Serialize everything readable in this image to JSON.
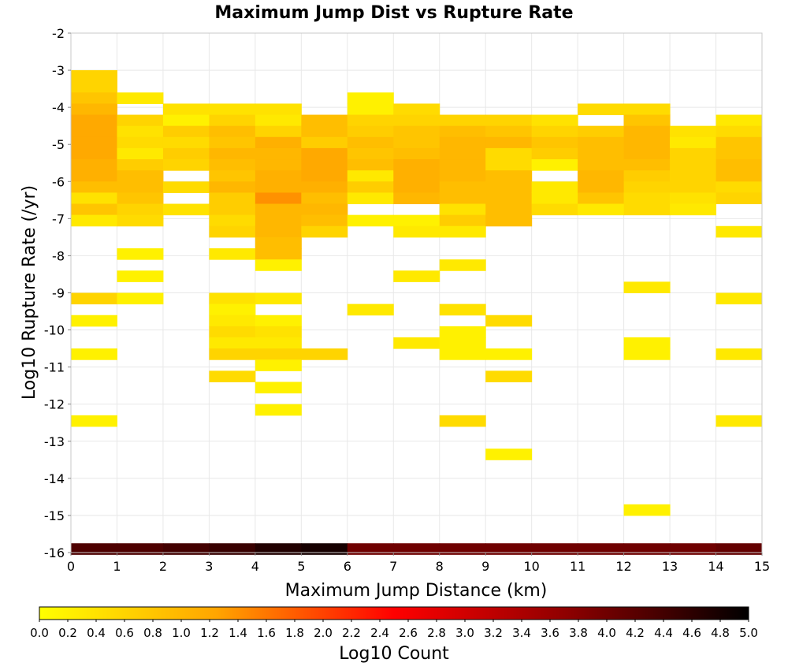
{
  "chart_data": {
    "type": "heatmap",
    "title": "Maximum Jump Dist vs Rupture Rate",
    "xlabel": "Maximum Jump Distance (km)",
    "ylabel": "Log10 Rupture Rate (/yr)",
    "xlim": [
      0,
      15
    ],
    "ylim": [
      -16,
      -2
    ],
    "x_ticks": [
      "0",
      "1",
      "2",
      "3",
      "4",
      "5",
      "6",
      "7",
      "8",
      "9",
      "10",
      "11",
      "12",
      "13",
      "14",
      "15"
    ],
    "y_ticks": [
      "-16",
      "-15",
      "-14",
      "-13",
      "-12",
      "-11",
      "-10",
      "-9",
      "-8",
      "-7",
      "-6",
      "-5",
      "-4",
      "-3",
      "-2"
    ],
    "grid": true,
    "x_bin_width": 1,
    "y_bin_height": 0.3,
    "colorbar": {
      "label": "Log10 Count",
      "range": [
        0,
        5
      ],
      "colors": [
        "#ffff00",
        "#ffa500",
        "#ff0000",
        "#8b0000",
        "#000000"
      ],
      "ticks": [
        "0.0",
        "0.2",
        "0.4",
        "0.6",
        "0.8",
        "1.0",
        "1.2",
        "1.4",
        "1.6",
        "1.8",
        "2.0",
        "2.2",
        "2.4",
        "2.6",
        "2.8",
        "3.0",
        "3.2",
        "3.4",
        "3.6",
        "3.8",
        "4.0",
        "4.2",
        "4.4",
        "4.6",
        "4.8",
        "5.0"
      ]
    },
    "cells": [
      {
        "x": 0,
        "y": -3.15,
        "v": 0.6
      },
      {
        "x": 0,
        "y": -3.45,
        "v": 0.6
      },
      {
        "x": 0,
        "y": -3.75,
        "v": 0.8
      },
      {
        "x": 0,
        "y": -4.05,
        "v": 1.0
      },
      {
        "x": 0,
        "y": -4.35,
        "v": 1.2
      },
      {
        "x": 0,
        "y": -4.65,
        "v": 1.2
      },
      {
        "x": 0,
        "y": -4.95,
        "v": 1.2
      },
      {
        "x": 0,
        "y": -5.25,
        "v": 1.2
      },
      {
        "x": 0,
        "y": -5.55,
        "v": 1.1
      },
      {
        "x": 0,
        "y": -5.85,
        "v": 1.1
      },
      {
        "x": 0,
        "y": -6.15,
        "v": 0.9
      },
      {
        "x": 0,
        "y": -6.45,
        "v": 0.4
      },
      {
        "x": 0,
        "y": -6.75,
        "v": 0.8
      },
      {
        "x": 0,
        "y": -7.05,
        "v": 0.3
      },
      {
        "x": 0,
        "y": -9.15,
        "v": 0.6
      },
      {
        "x": 0,
        "y": -9.75,
        "v": 0.2
      },
      {
        "x": 0,
        "y": -10.65,
        "v": 0.2
      },
      {
        "x": 0,
        "y": -12.45,
        "v": 0.2
      },
      {
        "x": 1,
        "y": -3.75,
        "v": 0.3
      },
      {
        "x": 1,
        "y": -4.35,
        "v": 0.6
      },
      {
        "x": 1,
        "y": -4.65,
        "v": 0.4
      },
      {
        "x": 1,
        "y": -4.95,
        "v": 0.5
      },
      {
        "x": 1,
        "y": -5.25,
        "v": 0.3
      },
      {
        "x": 1,
        "y": -5.55,
        "v": 0.7
      },
      {
        "x": 1,
        "y": -5.85,
        "v": 0.9
      },
      {
        "x": 1,
        "y": -6.15,
        "v": 0.9
      },
      {
        "x": 1,
        "y": -6.45,
        "v": 0.8
      },
      {
        "x": 1,
        "y": -6.75,
        "v": 0.6
      },
      {
        "x": 1,
        "y": -7.05,
        "v": 0.5
      },
      {
        "x": 1,
        "y": -7.95,
        "v": 0.2
      },
      {
        "x": 1,
        "y": -8.55,
        "v": 0.2
      },
      {
        "x": 1,
        "y": -9.15,
        "v": 0.2
      },
      {
        "x": 2,
        "y": -4.05,
        "v": 0.4
      },
      {
        "x": 2,
        "y": -4.35,
        "v": 0.2
      },
      {
        "x": 2,
        "y": -4.65,
        "v": 0.7
      },
      {
        "x": 2,
        "y": -4.95,
        "v": 0.5
      },
      {
        "x": 2,
        "y": -5.25,
        "v": 0.7
      },
      {
        "x": 2,
        "y": -5.55,
        "v": 0.6
      },
      {
        "x": 2,
        "y": -6.15,
        "v": 0.5
      },
      {
        "x": 2,
        "y": -6.75,
        "v": 0.4
      },
      {
        "x": 3,
        "y": -4.05,
        "v": 0.4
      },
      {
        "x": 3,
        "y": -4.35,
        "v": 0.6
      },
      {
        "x": 3,
        "y": -4.65,
        "v": 0.9
      },
      {
        "x": 3,
        "y": -4.95,
        "v": 0.8
      },
      {
        "x": 3,
        "y": -5.25,
        "v": 1.0
      },
      {
        "x": 3,
        "y": -5.55,
        "v": 0.9
      },
      {
        "x": 3,
        "y": -5.85,
        "v": 0.8
      },
      {
        "x": 3,
        "y": -6.15,
        "v": 1.0
      },
      {
        "x": 3,
        "y": -6.45,
        "v": 0.7
      },
      {
        "x": 3,
        "y": -6.75,
        "v": 0.7
      },
      {
        "x": 3,
        "y": -7.05,
        "v": 0.5
      },
      {
        "x": 3,
        "y": -7.35,
        "v": 0.6
      },
      {
        "x": 3,
        "y": -7.95,
        "v": 0.3
      },
      {
        "x": 3,
        "y": -9.15,
        "v": 0.4
      },
      {
        "x": 3,
        "y": -9.45,
        "v": 0.2
      },
      {
        "x": 3,
        "y": -9.75,
        "v": 0.3
      },
      {
        "x": 3,
        "y": -10.05,
        "v": 0.5
      },
      {
        "x": 3,
        "y": -10.35,
        "v": 0.3
      },
      {
        "x": 3,
        "y": -10.65,
        "v": 0.6
      },
      {
        "x": 3,
        "y": -11.25,
        "v": 0.5
      },
      {
        "x": 4,
        "y": -4.05,
        "v": 0.4
      },
      {
        "x": 4,
        "y": -4.35,
        "v": 0.3
      },
      {
        "x": 4,
        "y": -4.65,
        "v": 0.6
      },
      {
        "x": 4,
        "y": -4.95,
        "v": 1.1
      },
      {
        "x": 4,
        "y": -5.25,
        "v": 1.0
      },
      {
        "x": 4,
        "y": -5.55,
        "v": 1.0
      },
      {
        "x": 4,
        "y": -5.85,
        "v": 1.1
      },
      {
        "x": 4,
        "y": -6.15,
        "v": 1.1
      },
      {
        "x": 4,
        "y": -6.45,
        "v": 1.4
      },
      {
        "x": 4,
        "y": -6.75,
        "v": 1.0
      },
      {
        "x": 4,
        "y": -7.05,
        "v": 1.0
      },
      {
        "x": 4,
        "y": -7.35,
        "v": 1.0
      },
      {
        "x": 4,
        "y": -7.65,
        "v": 0.9
      },
      {
        "x": 4,
        "y": -7.95,
        "v": 0.9
      },
      {
        "x": 4,
        "y": -8.25,
        "v": 0.2
      },
      {
        "x": 4,
        "y": -9.15,
        "v": 0.3
      },
      {
        "x": 4,
        "y": -9.75,
        "v": 0.2
      },
      {
        "x": 4,
        "y": -10.05,
        "v": 0.4
      },
      {
        "x": 4,
        "y": -10.35,
        "v": 0.3
      },
      {
        "x": 4,
        "y": -10.65,
        "v": 0.6
      },
      {
        "x": 4,
        "y": -10.95,
        "v": 0.2
      },
      {
        "x": 4,
        "y": -11.55,
        "v": 0.2
      },
      {
        "x": 4,
        "y": -12.15,
        "v": 0.2
      },
      {
        "x": 5,
        "y": -4.35,
        "v": 0.9
      },
      {
        "x": 5,
        "y": -4.65,
        "v": 0.9
      },
      {
        "x": 5,
        "y": -4.95,
        "v": 0.7
      },
      {
        "x": 5,
        "y": -5.25,
        "v": 1.2
      },
      {
        "x": 5,
        "y": -5.55,
        "v": 1.2
      },
      {
        "x": 5,
        "y": -5.85,
        "v": 1.2
      },
      {
        "x": 5,
        "y": -6.15,
        "v": 1.1
      },
      {
        "x": 5,
        "y": -6.45,
        "v": 0.9
      },
      {
        "x": 5,
        "y": -6.75,
        "v": 1.0
      },
      {
        "x": 5,
        "y": -7.05,
        "v": 0.9
      },
      {
        "x": 5,
        "y": -7.35,
        "v": 0.6
      },
      {
        "x": 5,
        "y": -10.65,
        "v": 0.6
      },
      {
        "x": 6,
        "y": -3.75,
        "v": 0.2
      },
      {
        "x": 6,
        "y": -4.05,
        "v": 0.2
      },
      {
        "x": 6,
        "y": -4.35,
        "v": 0.6
      },
      {
        "x": 6,
        "y": -4.65,
        "v": 0.7
      },
      {
        "x": 6,
        "y": -4.95,
        "v": 0.9
      },
      {
        "x": 6,
        "y": -5.25,
        "v": 0.8
      },
      {
        "x": 6,
        "y": -5.55,
        "v": 0.9
      },
      {
        "x": 6,
        "y": -5.85,
        "v": 0.3
      },
      {
        "x": 6,
        "y": -6.15,
        "v": 0.7
      },
      {
        "x": 6,
        "y": -6.45,
        "v": 0.3
      },
      {
        "x": 6,
        "y": -7.05,
        "v": 0.2
      },
      {
        "x": 6,
        "y": -9.45,
        "v": 0.3
      },
      {
        "x": 7,
        "y": -4.05,
        "v": 0.5
      },
      {
        "x": 7,
        "y": -4.35,
        "v": 0.6
      },
      {
        "x": 7,
        "y": -4.65,
        "v": 0.8
      },
      {
        "x": 7,
        "y": -4.95,
        "v": 0.8
      },
      {
        "x": 7,
        "y": -5.25,
        "v": 0.9
      },
      {
        "x": 7,
        "y": -5.55,
        "v": 1.1
      },
      {
        "x": 7,
        "y": -5.85,
        "v": 1.1
      },
      {
        "x": 7,
        "y": -6.15,
        "v": 1.1
      },
      {
        "x": 7,
        "y": -6.45,
        "v": 1.0
      },
      {
        "x": 7,
        "y": -7.05,
        "v": 0.2
      },
      {
        "x": 7,
        "y": -7.35,
        "v": 0.3
      },
      {
        "x": 7,
        "y": -8.55,
        "v": 0.3
      },
      {
        "x": 7,
        "y": -10.35,
        "v": 0.3
      },
      {
        "x": 8,
        "y": -4.35,
        "v": 0.6
      },
      {
        "x": 8,
        "y": -4.65,
        "v": 0.9
      },
      {
        "x": 8,
        "y": -4.95,
        "v": 1.0
      },
      {
        "x": 8,
        "y": -5.25,
        "v": 1.0
      },
      {
        "x": 8,
        "y": -5.55,
        "v": 1.0
      },
      {
        "x": 8,
        "y": -5.85,
        "v": 1.0
      },
      {
        "x": 8,
        "y": -6.15,
        "v": 0.9
      },
      {
        "x": 8,
        "y": -6.45,
        "v": 0.9
      },
      {
        "x": 8,
        "y": -6.75,
        "v": 0.4
      },
      {
        "x": 8,
        "y": -7.05,
        "v": 0.7
      },
      {
        "x": 8,
        "y": -7.35,
        "v": 0.3
      },
      {
        "x": 8,
        "y": -8.25,
        "v": 0.3
      },
      {
        "x": 8,
        "y": -9.45,
        "v": 0.4
      },
      {
        "x": 8,
        "y": -10.05,
        "v": 0.2
      },
      {
        "x": 8,
        "y": -10.35,
        "v": 0.2
      },
      {
        "x": 8,
        "y": -10.65,
        "v": 0.2
      },
      {
        "x": 8,
        "y": -12.45,
        "v": 0.5
      },
      {
        "x": 9,
        "y": -4.35,
        "v": 0.6
      },
      {
        "x": 9,
        "y": -4.65,
        "v": 0.8
      },
      {
        "x": 9,
        "y": -4.95,
        "v": 1.0
      },
      {
        "x": 9,
        "y": -5.25,
        "v": 0.5
      },
      {
        "x": 9,
        "y": -5.55,
        "v": 0.5
      },
      {
        "x": 9,
        "y": -5.85,
        "v": 0.9
      },
      {
        "x": 9,
        "y": -6.15,
        "v": 0.9
      },
      {
        "x": 9,
        "y": -6.45,
        "v": 0.9
      },
      {
        "x": 9,
        "y": -6.75,
        "v": 0.9
      },
      {
        "x": 9,
        "y": -7.05,
        "v": 0.9
      },
      {
        "x": 9,
        "y": -9.75,
        "v": 0.5
      },
      {
        "x": 9,
        "y": -10.65,
        "v": 0.2
      },
      {
        "x": 9,
        "y": -11.25,
        "v": 0.5
      },
      {
        "x": 9,
        "y": -13.35,
        "v": 0.2
      },
      {
        "x": 10,
        "y": -4.35,
        "v": 0.4
      },
      {
        "x": 10,
        "y": -4.65,
        "v": 0.6
      },
      {
        "x": 10,
        "y": -4.95,
        "v": 0.8
      },
      {
        "x": 10,
        "y": -5.25,
        "v": 0.7
      },
      {
        "x": 10,
        "y": -5.55,
        "v": 0.2
      },
      {
        "x": 10,
        "y": -6.15,
        "v": 0.3
      },
      {
        "x": 10,
        "y": -6.45,
        "v": 0.3
      },
      {
        "x": 10,
        "y": -6.75,
        "v": 0.5
      },
      {
        "x": 11,
        "y": -4.05,
        "v": 0.5
      },
      {
        "x": 11,
        "y": -4.65,
        "v": 0.7
      },
      {
        "x": 11,
        "y": -4.95,
        "v": 0.9
      },
      {
        "x": 11,
        "y": -5.25,
        "v": 0.9
      },
      {
        "x": 11,
        "y": -5.55,
        "v": 0.9
      },
      {
        "x": 11,
        "y": -5.85,
        "v": 1.0
      },
      {
        "x": 11,
        "y": -6.15,
        "v": 1.0
      },
      {
        "x": 11,
        "y": -6.45,
        "v": 0.8
      },
      {
        "x": 11,
        "y": -6.75,
        "v": 0.3
      },
      {
        "x": 12,
        "y": -4.05,
        "v": 0.5
      },
      {
        "x": 12,
        "y": -4.35,
        "v": 0.8
      },
      {
        "x": 12,
        "y": -4.65,
        "v": 1.0
      },
      {
        "x": 12,
        "y": -4.95,
        "v": 1.0
      },
      {
        "x": 12,
        "y": -5.25,
        "v": 1.0
      },
      {
        "x": 12,
        "y": -5.55,
        "v": 0.9
      },
      {
        "x": 12,
        "y": -5.85,
        "v": 0.7
      },
      {
        "x": 12,
        "y": -6.15,
        "v": 0.6
      },
      {
        "x": 12,
        "y": -6.45,
        "v": 0.5
      },
      {
        "x": 12,
        "y": -6.75,
        "v": 0.5
      },
      {
        "x": 12,
        "y": -8.85,
        "v": 0.3
      },
      {
        "x": 12,
        "y": -10.35,
        "v": 0.2
      },
      {
        "x": 12,
        "y": -10.65,
        "v": 0.2
      },
      {
        "x": 12,
        "y": -14.85,
        "v": 0.2
      },
      {
        "x": 13,
        "y": -4.65,
        "v": 0.4
      },
      {
        "x": 13,
        "y": -4.95,
        "v": 0.3
      },
      {
        "x": 13,
        "y": -5.25,
        "v": 0.6
      },
      {
        "x": 13,
        "y": -5.55,
        "v": 0.6
      },
      {
        "x": 13,
        "y": -5.85,
        "v": 0.6
      },
      {
        "x": 13,
        "y": -6.15,
        "v": 0.6
      },
      {
        "x": 13,
        "y": -6.45,
        "v": 0.4
      },
      {
        "x": 13,
        "y": -6.75,
        "v": 0.3
      },
      {
        "x": 14,
        "y": -4.35,
        "v": 0.3
      },
      {
        "x": 14,
        "y": -4.65,
        "v": 0.5
      },
      {
        "x": 14,
        "y": -4.95,
        "v": 0.8
      },
      {
        "x": 14,
        "y": -5.25,
        "v": 0.8
      },
      {
        "x": 14,
        "y": -5.55,
        "v": 0.9
      },
      {
        "x": 14,
        "y": -5.85,
        "v": 0.9
      },
      {
        "x": 14,
        "y": -6.15,
        "v": 0.5
      },
      {
        "x": 14,
        "y": -6.45,
        "v": 0.6
      },
      {
        "x": 14,
        "y": -7.35,
        "v": 0.3
      },
      {
        "x": 14,
        "y": -9.15,
        "v": 0.3
      },
      {
        "x": 14,
        "y": -10.65,
        "v": 0.3
      },
      {
        "x": 14,
        "y": -12.45,
        "v": 0.3
      },
      {
        "x": 0,
        "y": -15.9,
        "v": 4.3
      },
      {
        "x": 1,
        "y": -15.9,
        "v": 4.3
      },
      {
        "x": 2,
        "y": -15.9,
        "v": 4.4
      },
      {
        "x": 3,
        "y": -15.9,
        "v": 4.5
      },
      {
        "x": 4,
        "y": -15.9,
        "v": 4.7
      },
      {
        "x": 5,
        "y": -15.9,
        "v": 4.8
      },
      {
        "x": 6,
        "y": -15.9,
        "v": 4.0
      },
      {
        "x": 7,
        "y": -15.9,
        "v": 4.0
      },
      {
        "x": 8,
        "y": -15.9,
        "v": 4.0
      },
      {
        "x": 9,
        "y": -15.9,
        "v": 4.0
      },
      {
        "x": 10,
        "y": -15.9,
        "v": 4.0
      },
      {
        "x": 11,
        "y": -15.9,
        "v": 4.0
      },
      {
        "x": 12,
        "y": -15.9,
        "v": 4.0
      },
      {
        "x": 13,
        "y": -15.9,
        "v": 4.0
      },
      {
        "x": 14,
        "y": -15.9,
        "v": 4.1
      }
    ]
  }
}
